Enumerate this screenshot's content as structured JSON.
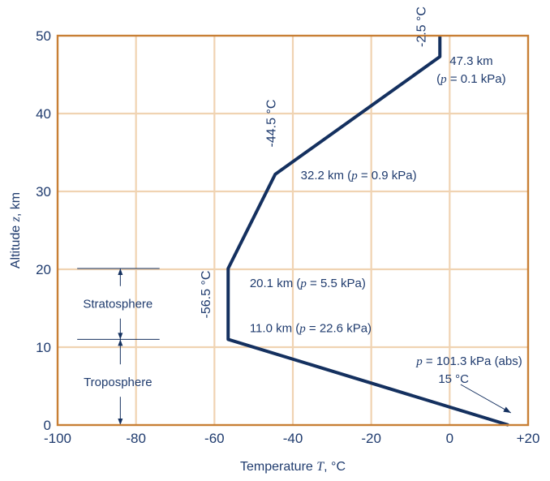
{
  "chart_data": {
    "type": "line",
    "xlabel_parts": [
      "Temperature ",
      "T",
      ", °C"
    ],
    "ylabel_parts": [
      "Altitude ",
      "z",
      ", km"
    ],
    "xlim": [
      -100,
      20
    ],
    "ylim": [
      0,
      50
    ],
    "xticks": [
      -100,
      -80,
      -60,
      -40,
      -20,
      0,
      20
    ],
    "xtick_labels": [
      "-100",
      "-80",
      "-60",
      "-40",
      "-20",
      "0",
      "+20"
    ],
    "yticks": [
      0,
      10,
      20,
      30,
      40,
      50
    ],
    "ytick_labels": [
      "0",
      "10",
      "20",
      "30",
      "40",
      "50"
    ],
    "grid": true,
    "series": [
      {
        "x": [
          15,
          -56.5,
          -56.5,
          -44.5,
          -2.5,
          -2.5
        ],
        "y": [
          0,
          11.0,
          20.1,
          32.2,
          47.3,
          50
        ]
      }
    ],
    "annotations": {
      "a473_line1": "47.3 km",
      "a473_line2_parts": [
        "(",
        "p",
        " = 0.1 kPa)"
      ],
      "a322_parts": [
        "32.2 km (",
        "p",
        " = 0.9 kPa)"
      ],
      "a201_parts": [
        "20.1 km (",
        "p",
        " = 5.5 kPa)"
      ],
      "a110_parts": [
        "11.0 km (",
        "p",
        " = 22.6 kPa)"
      ],
      "surface_line1_parts": [
        "p",
        " = 101.3 kPa (abs)"
      ],
      "surface_line2": "15 °C",
      "temp_top": "-2.5 °C",
      "temp_mid": "-44.5 °C",
      "temp_low": "-56.5 °C"
    },
    "layers": [
      {
        "name": "Stratosphere",
        "bottom": 11.0,
        "top": 20.1
      },
      {
        "name": "Troposphere",
        "bottom": 0,
        "top": 11.0
      }
    ]
  }
}
